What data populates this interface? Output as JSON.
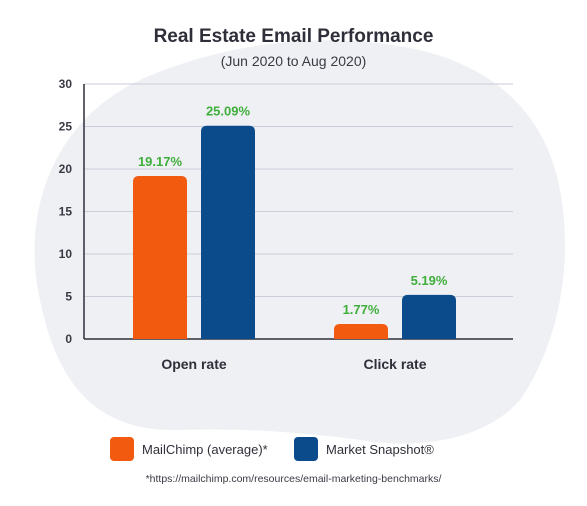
{
  "chart_data": {
    "type": "bar",
    "title": "Real Estate Email Performance",
    "subtitle": "(Jun 2020 to Aug 2020)",
    "categories": [
      "Open rate",
      "Click rate"
    ],
    "series": [
      {
        "name": "MailChimp (average)*",
        "values": [
          19.17,
          1.77
        ],
        "labels": [
          "19.17%",
          "1.77%"
        ],
        "color": "#f25a0f"
      },
      {
        "name": "Market Snapshot®",
        "values": [
          25.09,
          5.19
        ],
        "labels": [
          "25.09%",
          "5.19%"
        ],
        "color": "#0b4a8b"
      }
    ],
    "ylim": [
      0,
      30
    ],
    "yticks": [
      0,
      5,
      10,
      15,
      20,
      25,
      30
    ],
    "ytick_labels": [
      "0",
      "5",
      "10",
      "15",
      "20",
      "25",
      "30"
    ],
    "grid": true,
    "legend_position": "bottom",
    "label_color": "#3fae3a",
    "background_blob_color": "#eef0f4",
    "footnote": "*https://mailchimp.com/resources/email-marketing-benchmarks/"
  }
}
